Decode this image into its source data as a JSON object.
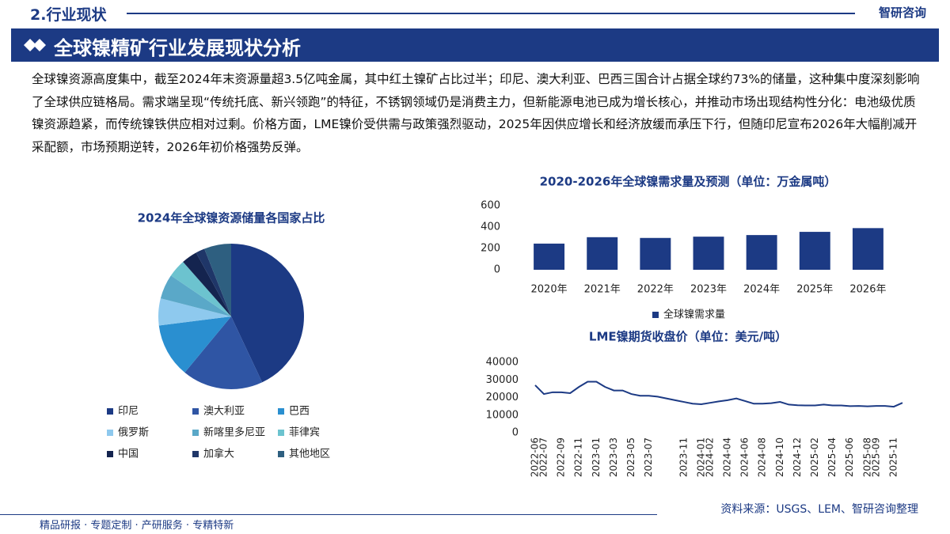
{
  "header": {
    "section": "2.行业现状",
    "brand": "智研咨询"
  },
  "title": "全球镍精矿行业发展现状分析",
  "body": "全球镍资源高度集中，截至2024年末资源量超3.5亿吨金属，其中红土镍矿占比过半；印尼、澳大利亚、巴西三国合计占据全球约73%的储量，这种集中度深刻影响了全球供应链格局。需求端呈现“传统托底、新兴领跑”的特征，不锈钢领域仍是消费主力，但新能源电池已成为增长核心，并推动市场出现结构性分化：电池级优质镍资源趋紧，而传统镍铁供应相对过剩。价格方面，LME镍价受供需与政策强烈驱动，2025年因供应增长和经济放缓而承压下行，但随印尼宣布2026年大幅削减开采配额，市场预期逆转，2026年初价格强势反弹。",
  "chart_data": [
    {
      "type": "pie",
      "title": "2024年全球镍资源储量各国家占比",
      "categories": [
        "印尼",
        "澳大利亚",
        "巴西",
        "俄罗斯",
        "新喀里多尼亚",
        "菲律宾",
        "中国",
        "加拿大",
        "其他地区"
      ],
      "values": [
        43,
        18,
        12,
        6,
        5.5,
        4,
        3.5,
        2,
        6
      ],
      "colors": [
        "#1c3a84",
        "#2f55a4",
        "#2a8fd0",
        "#8ec9ee",
        "#5aa8c8",
        "#6cc3cf",
        "#14244f",
        "#1f3668",
        "#2e5f80"
      ]
    },
    {
      "type": "bar",
      "title": "2020-2026年全球镍需求量及预测（单位：万金属吨）",
      "categories": [
        "2020年",
        "2021年",
        "2022年",
        "2023年",
        "2024年",
        "2025年",
        "2026年"
      ],
      "series": [
        {
          "name": "全球镍需求量",
          "color": "#1c3a84",
          "values": [
            245,
            305,
            298,
            310,
            325,
            355,
            390
          ]
        }
      ],
      "ylim": [
        0,
        600
      ],
      "yticks": [
        0,
        200,
        400,
        600
      ],
      "legend": "bottom"
    },
    {
      "type": "line",
      "title": "LME镍期货收盘价（单位：美元/吨）",
      "x": [
        "2022-06",
        "2022-07",
        null,
        "2022-09",
        null,
        "2022-11",
        null,
        "2023-01",
        null,
        "2023-03",
        null,
        "2023-05",
        null,
        "2023-07",
        null,
        null,
        null,
        "2023-11",
        null,
        "2024-01",
        "2024-02",
        null,
        "2024-04",
        null,
        "2024-06",
        null,
        "2024-08",
        null,
        "2024-10",
        null,
        "2024-12",
        null,
        "2025-02",
        null,
        "2025-04",
        null,
        "2025-06",
        null,
        "2025-08",
        "2025-09",
        null,
        "2025-11",
        null
      ],
      "series": [
        {
          "name": "LME镍期货收盘价",
          "color": "#1c3a84",
          "values": [
            27000,
            22000,
            23000,
            23000,
            22500,
            26000,
            29000,
            29000,
            26000,
            24000,
            24000,
            22000,
            21000,
            21000,
            20500,
            19500,
            18500,
            17500,
            16500,
            16200,
            17000,
            17800,
            18500,
            19500,
            18000,
            16500,
            16500,
            16800,
            17500,
            16000,
            15600,
            15500,
            15500,
            16000,
            15500,
            15500,
            15100,
            15200,
            15000,
            15200,
            15200,
            14800,
            17000
          ]
        }
      ],
      "ylim": [
        0,
        40000
      ],
      "yticks": [
        0,
        10000,
        20000,
        30000,
        40000
      ]
    }
  ],
  "source": "资料来源：USGS、LEM、智研咨询整理",
  "footer": "精品研报 · 专题定制 · 产研服务 · 专精特新"
}
